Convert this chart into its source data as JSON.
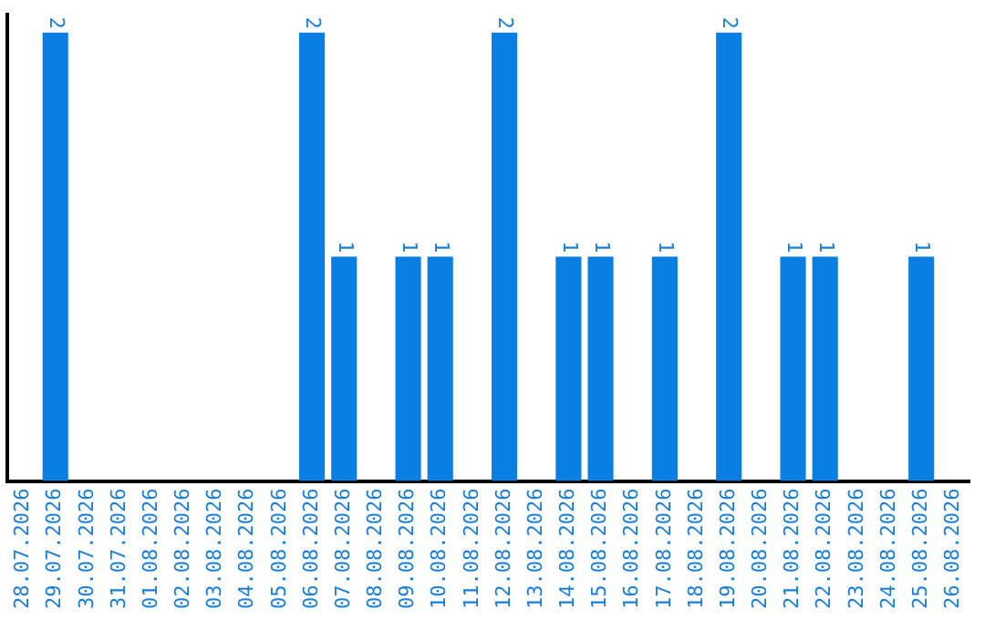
{
  "chart_data": {
    "type": "bar",
    "categories": [
      "28.07.2026",
      "29.07.2026",
      "30.07.2026",
      "31.07.2026",
      "01.08.2026",
      "02.08.2026",
      "03.08.2026",
      "04.08.2026",
      "05.08.2026",
      "06.08.2026",
      "07.08.2026",
      "08.08.2026",
      "09.08.2026",
      "10.08.2026",
      "11.08.2026",
      "12.08.2026",
      "13.08.2026",
      "14.08.2026",
      "15.08.2026",
      "16.08.2026",
      "17.08.2026",
      "18.08.2026",
      "19.08.2026",
      "20.08.2026",
      "21.08.2026",
      "22.08.2026",
      "23.08.2026",
      "24.08.2026",
      "25.08.2026",
      "26.08.2026"
    ],
    "values": [
      0,
      2,
      0,
      0,
      0,
      0,
      0,
      0,
      0,
      2,
      1,
      0,
      1,
      1,
      0,
      2,
      0,
      1,
      1,
      0,
      1,
      0,
      2,
      0,
      1,
      1,
      0,
      0,
      1,
      0
    ],
    "value_labels": [
      null,
      "2",
      null,
      null,
      null,
      null,
      null,
      null,
      null,
      "2",
      "1",
      null,
      "1",
      "1",
      null,
      "2",
      null,
      "1",
      "1",
      null,
      "1",
      null,
      "2",
      null,
      "1",
      "1",
      null,
      null,
      "1",
      null
    ],
    "color": "#0a7fe3",
    "ylim": [
      0,
      2.08
    ],
    "tick_labels": "x",
    "grid": false,
    "legend": false
  }
}
